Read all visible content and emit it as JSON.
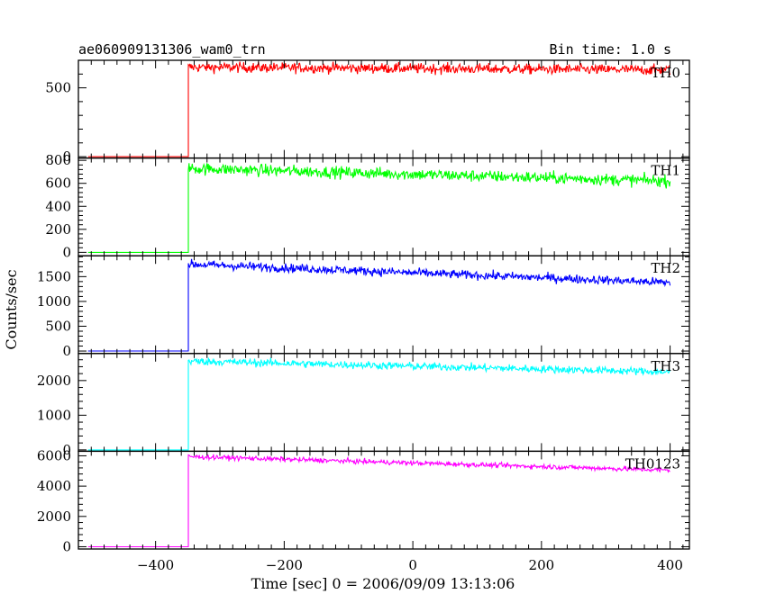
{
  "chart_data": {
    "type": "line",
    "title": "ae060909131306_wam0_trn",
    "bin_label": "Bin time: 1.0 s",
    "xlabel": "Time [sec] 0 = 2006/09/09 13:13:06",
    "ylabel": "Counts/sec",
    "xlim": [
      -520,
      430
    ],
    "x_ticks": [
      -400,
      -200,
      0,
      200,
      400
    ],
    "x_tick_labels": [
      "−400",
      "−200",
      "0",
      "200",
      "400"
    ],
    "grid": false,
    "panels": [
      {
        "name": "TH0",
        "color": "#ff0000",
        "ylim": [
          -10,
          700
        ],
        "y_ticks": [
          0,
          500
        ],
        "y_tick_labels": [
          "0",
          "500"
        ],
        "x_start": -505,
        "t_rise": -349,
        "x_end": 400,
        "pre_level": 0,
        "start_level": 650,
        "end_level": 630,
        "noise": 40
      },
      {
        "name": "TH1",
        "color": "#00ff00",
        "ylim": [
          -30,
          820
        ],
        "y_ticks": [
          0,
          200,
          400,
          600,
          800
        ],
        "y_tick_labels": [
          "0",
          "200",
          "400",
          "600",
          "800"
        ],
        "x_start": -505,
        "t_rise": -349,
        "x_end": 400,
        "pre_level": 0,
        "start_level": 730,
        "end_level": 620,
        "noise": 55
      },
      {
        "name": "TH2",
        "color": "#0000ff",
        "ylim": [
          -50,
          1920
        ],
        "y_ticks": [
          0,
          500,
          1000,
          1500
        ],
        "y_tick_labels": [
          "0",
          "500",
          "1000",
          "1500"
        ],
        "x_start": -505,
        "t_rise": -349,
        "x_end": 400,
        "pre_level": 0,
        "start_level": 1750,
        "end_level": 1380,
        "noise": 95
      },
      {
        "name": "TH3",
        "color": "#00ffff",
        "ylim": [
          -40,
          2780
        ],
        "y_ticks": [
          0,
          1000,
          2000
        ],
        "y_tick_labels": [
          "0",
          "1000",
          "2000"
        ],
        "x_start": -505,
        "t_rise": -349,
        "x_end": 400,
        "pre_level": 0,
        "start_level": 2560,
        "end_level": 2250,
        "noise": 120
      },
      {
        "name": "TH0123",
        "color": "#ff00ff",
        "ylim": [
          -150,
          6300
        ],
        "y_ticks": [
          0,
          2000,
          4000,
          6000
        ],
        "y_tick_labels": [
          "0",
          "2000",
          "4000",
          "6000"
        ],
        "x_start": -505,
        "t_rise": -349,
        "x_end": 400,
        "pre_level": 0,
        "start_level": 5950,
        "end_level": 5050,
        "noise": 170
      }
    ]
  }
}
